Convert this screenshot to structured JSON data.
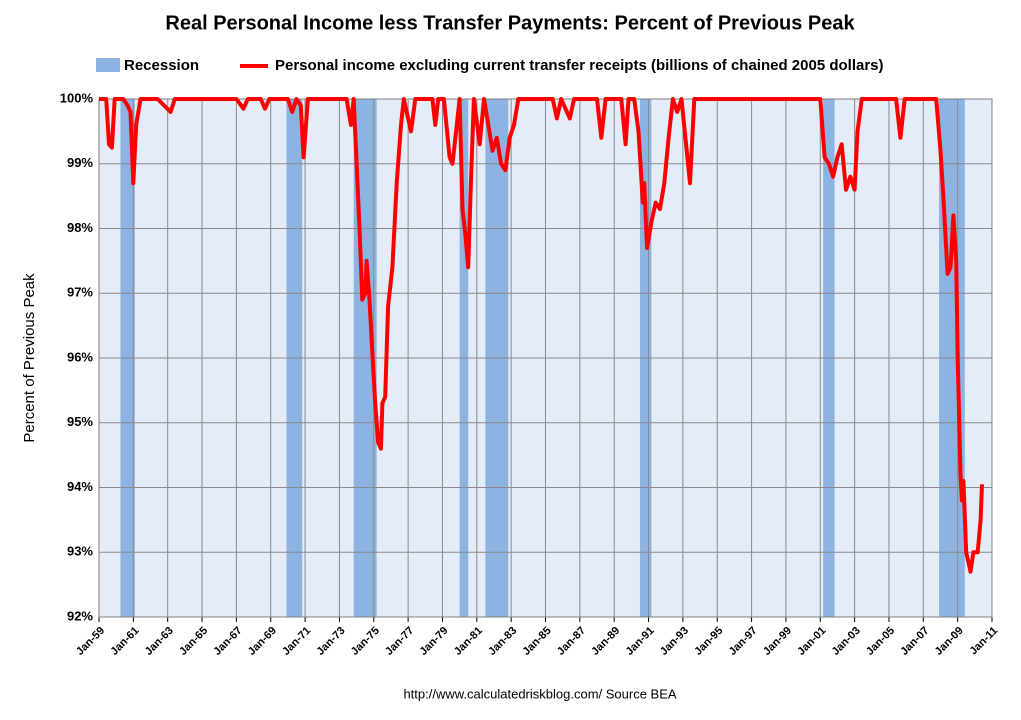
{
  "chart_data": {
    "type": "line",
    "title": "Real Personal Income less Transfer Payments: Percent of Previous Peak",
    "ylabel": "Percent of Previous Peak",
    "source": "http://www.calculatedriskblog.com/     Source BEA",
    "xlim": [
      "1959-01",
      "2011-01"
    ],
    "xticks": [
      {
        "value": "1959-01",
        "label": "Jan-59"
      },
      {
        "value": "1961-01",
        "label": "Jan-61"
      },
      {
        "value": "1963-01",
        "label": "Jan-63"
      },
      {
        "value": "1965-01",
        "label": "Jan-65"
      },
      {
        "value": "1967-01",
        "label": "Jan-67"
      },
      {
        "value": "1969-01",
        "label": "Jan-69"
      },
      {
        "value": "1971-01",
        "label": "Jan-71"
      },
      {
        "value": "1973-01",
        "label": "Jan-73"
      },
      {
        "value": "1975-01",
        "label": "Jan-75"
      },
      {
        "value": "1977-01",
        "label": "Jan-77"
      },
      {
        "value": "1979-01",
        "label": "Jan-79"
      },
      {
        "value": "1981-01",
        "label": "Jan-81"
      },
      {
        "value": "1983-01",
        "label": "Jan-83"
      },
      {
        "value": "1985-01",
        "label": "Jan-85"
      },
      {
        "value": "1987-01",
        "label": "Jan-87"
      },
      {
        "value": "1989-01",
        "label": "Jan-89"
      },
      {
        "value": "1991-01",
        "label": "Jan-91"
      },
      {
        "value": "1993-01",
        "label": "Jan-93"
      },
      {
        "value": "1995-01",
        "label": "Jan-95"
      },
      {
        "value": "1997-01",
        "label": "Jan-97"
      },
      {
        "value": "1999-01",
        "label": "Jan-99"
      },
      {
        "value": "2001-01",
        "label": "Jan-01"
      },
      {
        "value": "2003-01",
        "label": "Jan-03"
      },
      {
        "value": "2005-01",
        "label": "Jan-05"
      },
      {
        "value": "2007-01",
        "label": "Jan-07"
      },
      {
        "value": "2009-01",
        "label": "Jan-09"
      },
      {
        "value": "2011-01",
        "label": "Jan-11"
      }
    ],
    "ylim": [
      92,
      100
    ],
    "yticks": [
      {
        "value": 92,
        "label": "92%"
      },
      {
        "value": 93,
        "label": "93%"
      },
      {
        "value": 94,
        "label": "94%"
      },
      {
        "value": 95,
        "label": "95%"
      },
      {
        "value": 96,
        "label": "96%"
      },
      {
        "value": 97,
        "label": "97%"
      },
      {
        "value": 98,
        "label": "98%"
      },
      {
        "value": 99,
        "label": "99%"
      },
      {
        "value": 100,
        "label": "100%"
      }
    ],
    "grid": true,
    "recessions": {
      "name": "Recession",
      "color": "#8db3e2",
      "periods": [
        [
          "1960-04",
          "1961-02"
        ],
        [
          "1969-12",
          "1970-11"
        ],
        [
          "1973-11",
          "1975-03"
        ],
        [
          "1980-01",
          "1980-07"
        ],
        [
          "1981-07",
          "1982-11"
        ],
        [
          "1990-07",
          "1991-03"
        ],
        [
          "2001-03",
          "2001-11"
        ],
        [
          "2007-12",
          "2009-06"
        ]
      ]
    },
    "series": [
      {
        "name": "Personal income excluding current transfer receipts (billions of chained 2005 dollars)",
        "color": "#ff0000",
        "x": [
          "1959-01",
          "1959-06",
          "1959-08",
          "1959-10",
          "1959-12",
          "1960-06",
          "1960-09",
          "1960-11",
          "1961-01",
          "1961-03",
          "1961-06",
          "1962-06",
          "1963-03",
          "1963-06",
          "1967-01",
          "1967-06",
          "1967-09",
          "1968-06",
          "1968-09",
          "1968-12",
          "1970-01",
          "1970-04",
          "1970-07",
          "1970-10",
          "1970-12",
          "1971-03",
          "1973-06",
          "1973-09",
          "1973-11",
          "1974-01",
          "1974-03",
          "1974-05",
          "1974-07",
          "1974-08",
          "1974-10",
          "1974-12",
          "1975-02",
          "1975-04",
          "1975-06",
          "1975-07",
          "1975-09",
          "1975-11",
          "1976-02",
          "1976-05",
          "1976-08",
          "1976-10",
          "1977-03",
          "1977-06",
          "1978-06",
          "1978-08",
          "1978-10",
          "1979-02",
          "1979-06",
          "1979-08",
          "1979-11",
          "1980-01",
          "1980-03",
          "1980-05",
          "1980-07",
          "1980-09",
          "1980-11",
          "1981-03",
          "1981-06",
          "1981-09",
          "1981-12",
          "1982-03",
          "1982-06",
          "1982-09",
          "1982-12",
          "1983-03",
          "1983-06",
          "1985-06",
          "1985-09",
          "1985-12",
          "1986-06",
          "1986-09",
          "1988-01",
          "1988-04",
          "1988-07",
          "1989-06",
          "1989-09",
          "1989-11",
          "1990-03",
          "1990-06",
          "1990-09",
          "1990-10",
          "1990-12",
          "1991-03",
          "1991-06",
          "1991-09",
          "1991-12",
          "1992-03",
          "1992-06",
          "1992-09",
          "1992-12",
          "1993-06",
          "1993-09",
          "2001-01",
          "2001-04",
          "2001-07",
          "2001-10",
          "2002-01",
          "2002-04",
          "2002-07",
          "2002-10",
          "2003-01",
          "2003-03",
          "2003-06",
          "2005-06",
          "2005-09",
          "2005-12",
          "2007-10",
          "2008-01",
          "2008-03",
          "2008-06",
          "2008-08",
          "2008-10",
          "2008-12",
          "2009-01",
          "2009-03",
          "2009-04",
          "2009-05",
          "2009-07",
          "2009-09",
          "2009-10",
          "2009-12",
          "2010-03",
          "2010-05",
          "2010-06"
        ],
        "values": [
          100,
          100,
          99.3,
          99.25,
          100,
          100,
          99.9,
          99.8,
          98.7,
          99.6,
          100,
          100,
          99.8,
          100,
          100,
          99.85,
          100,
          100,
          99.85,
          100,
          100,
          99.8,
          100,
          99.9,
          99.1,
          100,
          100,
          99.6,
          100,
          99.0,
          98.0,
          96.9,
          97.0,
          97.5,
          96.9,
          96.1,
          95.3,
          94.7,
          94.6,
          95.3,
          95.4,
          96.8,
          97.4,
          98.7,
          99.6,
          100,
          99.5,
          100,
          100,
          99.6,
          100,
          100,
          99.1,
          99.0,
          99.6,
          100,
          98.3,
          97.9,
          97.4,
          98.8,
          100,
          99.3,
          100,
          99.6,
          99.2,
          99.4,
          99.0,
          98.9,
          99.4,
          99.6,
          100,
          100,
          99.7,
          100,
          99.7,
          100,
          100,
          99.4,
          100,
          100,
          99.3,
          100,
          100,
          99.5,
          98.4,
          98.7,
          97.7,
          98.1,
          98.4,
          98.3,
          98.7,
          99.4,
          100,
          99.8,
          100,
          98.7,
          100,
          100,
          99.1,
          99.0,
          98.8,
          99.1,
          99.3,
          98.6,
          98.8,
          98.6,
          99.5,
          100,
          100,
          99.4,
          100,
          100,
          99.2,
          98.5,
          97.3,
          97.4,
          98.2,
          97.5,
          96.0,
          94.2,
          93.8,
          94.1,
          93.0,
          92.8,
          92.7,
          93.0,
          93.0,
          93.5,
          94.05
        ]
      }
    ]
  }
}
